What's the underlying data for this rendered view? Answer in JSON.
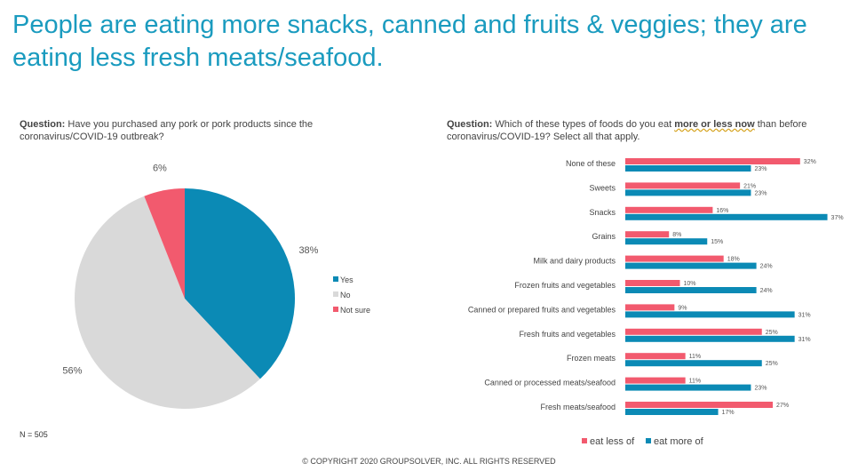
{
  "title": "People are eating more snacks, canned and fruits & veggies; they are eating less fresh meats/seafood.",
  "left_question_prefix": "Question:",
  "left_question_text": "Have you purchased any pork or pork products since the coronavirus/COVID-19 outbreak?",
  "right_question_prefix": "Question:",
  "right_question_text_a": "Which of these types of foods do you eat",
  "right_question_text_em": "more or less now",
  "right_question_text_b": "than before coronavirus/COVID-19? Select all that apply.",
  "sample_size": "N = 505",
  "copyright": "© COPYRIGHT 2020 GROUPSOLVER, INC. ALL RIGHTS RESERVED",
  "colors": {
    "title": "#1a9bbf",
    "yes": "#0b8ab5",
    "no": "#d9d9d9",
    "not_sure": "#f25a6e",
    "less": "#f25a6e",
    "more": "#0b8ab5"
  },
  "chart_data": [
    {
      "type": "pie",
      "categories": [
        "Yes",
        "No",
        "Not sure"
      ],
      "values": [
        38,
        56,
        6
      ],
      "labels": [
        "38%",
        "56%",
        "6%"
      ],
      "legend": "right"
    },
    {
      "type": "bar",
      "orientation": "horizontal",
      "categories": [
        "None of these",
        "Sweets",
        "Snacks",
        "Grains",
        "Milk and dairy products",
        "Frozen fruits and vegetables",
        "Canned or prepared fruits and vegetables",
        "Fresh fruits and vegetables",
        "Frozen meats",
        "Canned or processed meats/seafood",
        "Fresh meats/seafood"
      ],
      "series": [
        {
          "name": "eat less of",
          "values": [
            32,
            21,
            16,
            8,
            18,
            10,
            9,
            25,
            11,
            11,
            27
          ]
        },
        {
          "name": "eat more of",
          "values": [
            23,
            23,
            37,
            15,
            24,
            24,
            31,
            31,
            25,
            23,
            17
          ]
        }
      ],
      "value_suffix": "%",
      "legend": "bottom"
    }
  ]
}
